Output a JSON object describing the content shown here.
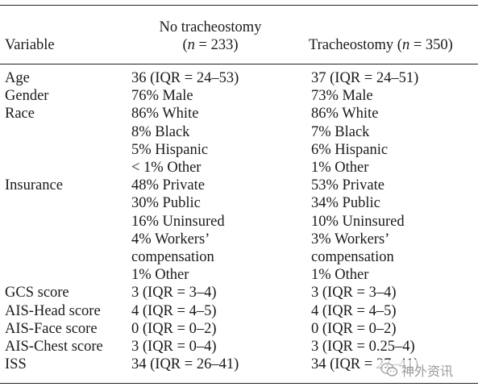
{
  "header": {
    "variable": "Variable",
    "no_trach_line1": "No tracheostomy",
    "no_trach_n_var": "n",
    "no_trach_n_val": " = 233)",
    "trach_label": "Tracheostomy (",
    "trach_n_var": "n",
    "trach_n_val": " = 350)"
  },
  "rows": [
    {
      "variable": "Age",
      "no_trach": "36 (IQR = 24–53)",
      "trach": "37 (IQR = 24–51)"
    },
    {
      "variable": "Gender",
      "no_trach": "76% Male",
      "trach": "73% Male"
    },
    {
      "variable": "Race",
      "no_trach": "86% White",
      "trach": "86% White"
    },
    {
      "variable": "",
      "no_trach": "8% Black",
      "trach": "7% Black"
    },
    {
      "variable": "",
      "no_trach": "5% Hispanic",
      "trach": "6% Hispanic"
    },
    {
      "variable": "",
      "no_trach": "< 1% Other",
      "trach": "1% Other"
    },
    {
      "variable": "Insurance",
      "no_trach": "48% Private",
      "trach": "53% Private"
    },
    {
      "variable": "",
      "no_trach": "30% Public",
      "trach": "34% Public"
    },
    {
      "variable": "",
      "no_trach": "16% Uninsured",
      "trach": "10% Uninsured"
    },
    {
      "variable": "",
      "no_trach": "4% Workers’",
      "trach": "3% Workers’"
    },
    {
      "variable": "",
      "no_trach": "compensation",
      "trach": "compensation"
    },
    {
      "variable": "",
      "no_trach": "1% Other",
      "trach": "1% Other"
    },
    {
      "variable": "GCS score",
      "no_trach": "3 (IQR = 3–4)",
      "trach": "3 (IQR = 3–4)"
    },
    {
      "variable": "AIS-Head score",
      "no_trach": "4 (IQR = 4–5)",
      "trach": "4 (IQR = 4–5)"
    },
    {
      "variable": "AIS-Face score",
      "no_trach": "0 (IQR = 0–2)",
      "trach": "0 (IQR = 0–2)"
    },
    {
      "variable": "AIS-Chest score",
      "no_trach": "3 (IQR = 0–4)",
      "trach": "3 (IQR = 0.25–4)"
    },
    {
      "variable": "ISS",
      "no_trach": "34 (IQR = 26–41)",
      "trach": "34 (IQR = 27–41)"
    }
  ],
  "watermark": {
    "text": "神外资讯",
    "icon": "wechat-icon"
  }
}
